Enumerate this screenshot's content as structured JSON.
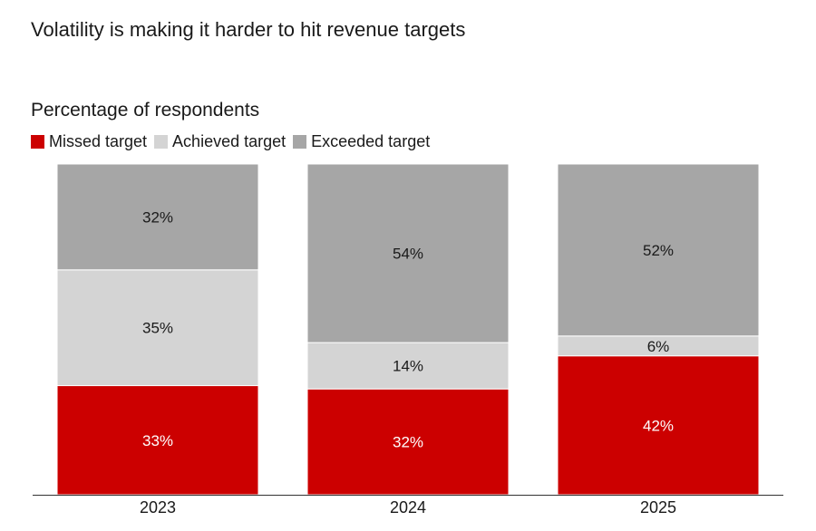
{
  "chart_data": {
    "type": "bar",
    "stacked": true,
    "title": "Volatility is making it harder to hit revenue targets",
    "subtitle": "Percentage of respondents",
    "categories": [
      "2023",
      "2024",
      "2025"
    ],
    "series": [
      {
        "name": "Missed target",
        "values": [
          33,
          32,
          42
        ],
        "labels": [
          "33%",
          "32%",
          "42%"
        ],
        "color": "#cc0000",
        "label_color": "#ffffff"
      },
      {
        "name": "Achieved target",
        "values": [
          35,
          14,
          6
        ],
        "labels": [
          "35%",
          "14%",
          "6%"
        ],
        "color": "#d4d4d4",
        "label_color": "#1a1a1a"
      },
      {
        "name": "Exceeded target",
        "values": [
          32,
          54,
          52
        ],
        "labels": [
          "32%",
          "54%",
          "52%"
        ],
        "color": "#a6a6a6",
        "label_color": "#1a1a1a"
      }
    ],
    "ylim": [
      0,
      100
    ],
    "legend_position": "top-left",
    "grid": false
  }
}
